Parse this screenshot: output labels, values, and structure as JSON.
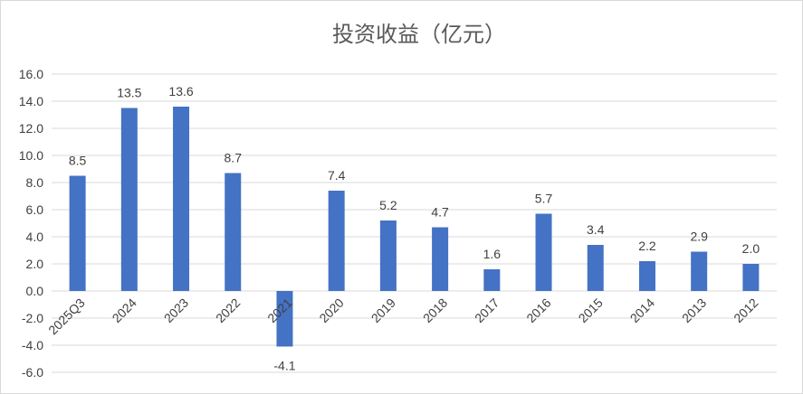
{
  "chart_data": {
    "type": "bar",
    "title": "投资收益（亿元）",
    "xlabel": "",
    "ylabel": "",
    "ylim": [
      -6.0,
      16.0
    ],
    "yticks": [
      "16.0",
      "14.0",
      "12.0",
      "10.0",
      "8.0",
      "6.0",
      "4.0",
      "2.0",
      "0.0",
      "-2.0",
      "-4.0",
      "-6.0"
    ],
    "grid": true,
    "legend": "none",
    "categories": [
      "2025Q3",
      "2024",
      "2023",
      "2022",
      "2021",
      "2020",
      "2019",
      "2018",
      "2017",
      "2016",
      "2015",
      "2014",
      "2013",
      "2012"
    ],
    "values": [
      8.5,
      13.5,
      13.6,
      8.7,
      -4.1,
      7.4,
      5.2,
      4.7,
      1.6,
      5.7,
      3.4,
      2.2,
      2.9,
      2.0
    ],
    "data_labels": [
      "8.5",
      "13.5",
      "13.6",
      "8.7",
      "-4.1",
      "7.4",
      "5.2",
      "4.7",
      "1.6",
      "5.7",
      "3.4",
      "2.2",
      "2.9",
      "2.0"
    ],
    "bar_color": "#4472c4",
    "grid_color": "#d9d9d9"
  }
}
